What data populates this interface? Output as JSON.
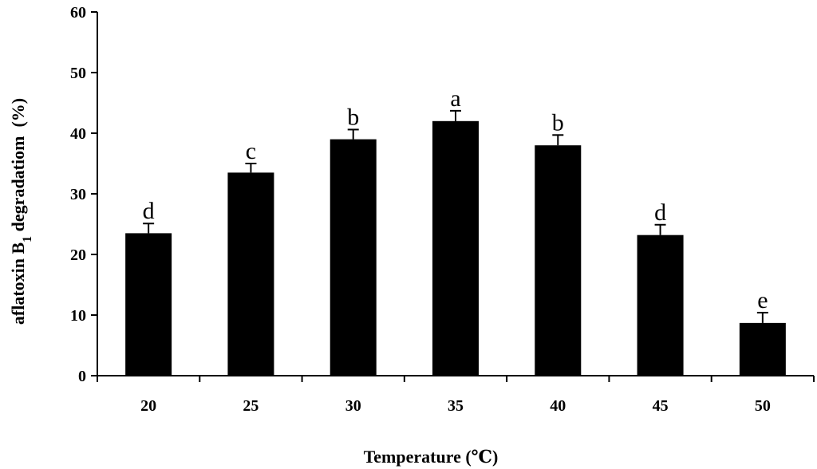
{
  "chart_data": {
    "type": "bar",
    "categories": [
      "20",
      "25",
      "30",
      "35",
      "40",
      "45",
      "50"
    ],
    "values": [
      23.5,
      33.5,
      39,
      42,
      38,
      23.2,
      8.7
    ],
    "error": [
      1.6,
      1.5,
      1.6,
      1.7,
      1.7,
      1.7,
      1.7
    ],
    "significance_labels": [
      "d",
      "c",
      "b",
      "a",
      "b",
      "d",
      "e"
    ],
    "xlabel": "Temperature (℃)",
    "ylabel": {
      "prefix": "aflatoxin B",
      "subscript": "1",
      "suffix": " degradatiom  (%)"
    },
    "ylim": [
      0,
      60
    ],
    "yticks": [
      0,
      10,
      20,
      30,
      40,
      50,
      60
    ],
    "grid": false,
    "bar_color": "#000000",
    "error_bar": "upper cap only"
  }
}
